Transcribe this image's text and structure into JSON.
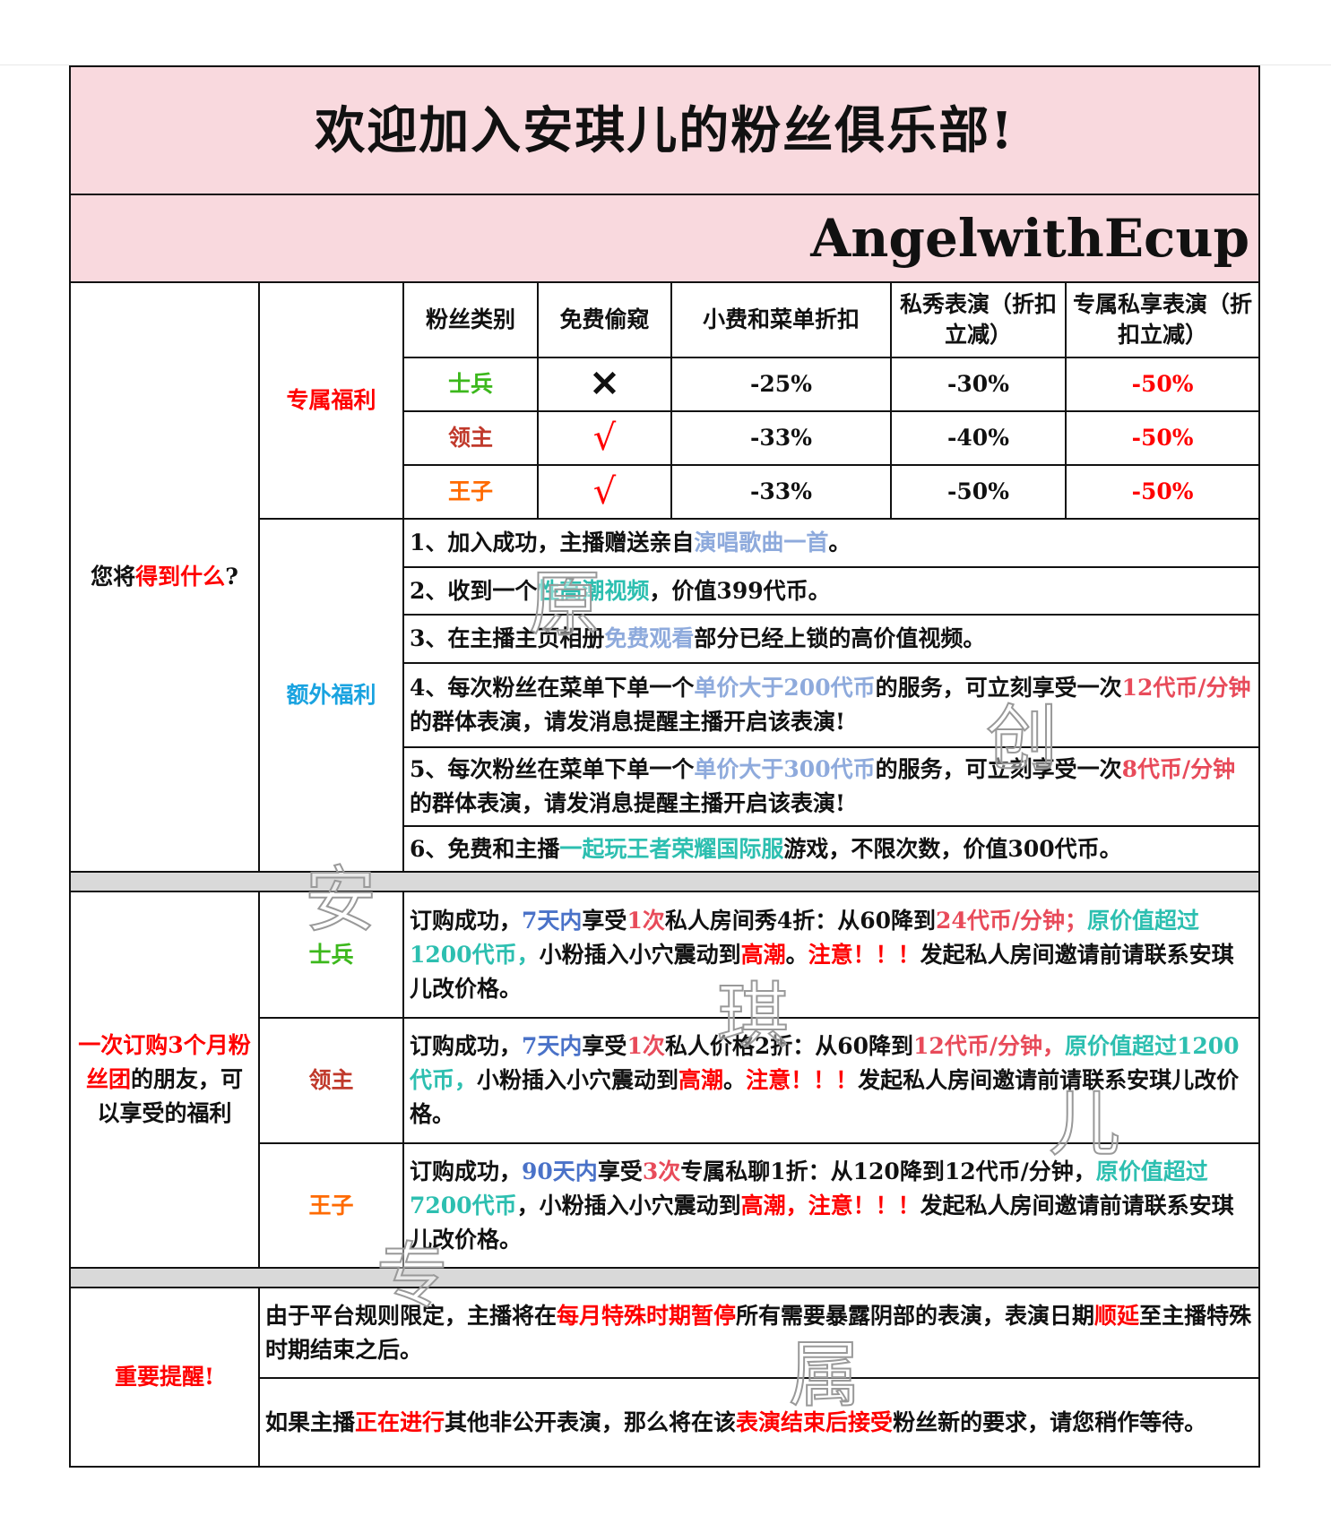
{
  "title": "欢迎加入安琪儿的粉丝俱乐部!",
  "brand": "AngelwithEcup",
  "colors": {
    "pink_bg": "#f9d9de",
    "soldier": "#3cb81c",
    "lord": "#c0392b",
    "prince": "#ff6a00",
    "red": "#ff0000",
    "lavender": "#8eaadc",
    "teal": "#2dbfb0",
    "pinkred": "#e84b5a",
    "blue": "#4a72c8",
    "cyan": "#1aa3e0"
  },
  "left_label": [
    {
      "t": "您将",
      "c": "k"
    },
    {
      "t": "得到什么",
      "c": "red"
    },
    {
      "t": "?",
      "c": "k"
    }
  ],
  "exclusive": {
    "label": "专属福利",
    "headers": [
      "粉丝类别",
      "免费偷窥",
      "小费和菜单折扣",
      "私秀表演（折扣立减）",
      "专属私享表演（折扣立减）"
    ],
    "rows": [
      {
        "tier": "士兵",
        "peek": "✕",
        "tip": "-25%",
        "private": "-30%",
        "exclusive": "-50%"
      },
      {
        "tier": "领主",
        "peek": "√",
        "tip": "-33%",
        "private": "-40%",
        "exclusive": "-50%"
      },
      {
        "tier": "王子",
        "peek": "√",
        "tip": "-33%",
        "private": "-50%",
        "exclusive": "-50%"
      }
    ]
  },
  "extra": {
    "label": "额外福利",
    "items": [
      [
        {
          "t": "1、加入成功，主播赠送亲自",
          "c": "k"
        },
        {
          "t": "演唱歌曲一首",
          "c": "lav"
        },
        {
          "t": "。",
          "c": "k"
        }
      ],
      [
        {
          "t": "2、收到一个",
          "c": "k"
        },
        {
          "t": "性高潮视频",
          "c": "teal"
        },
        {
          "t": "，价值399代币。",
          "c": "k"
        }
      ],
      [
        {
          "t": "3、在主播主页相册",
          "c": "k"
        },
        {
          "t": "免费观看",
          "c": "lav"
        },
        {
          "t": "部分已经上锁的高价值视频。",
          "c": "k"
        }
      ],
      [
        {
          "t": "4、每次粉丝在菜单下单一个",
          "c": "k"
        },
        {
          "t": "单价大于200代币",
          "c": "lav"
        },
        {
          "t": "的服务，可立刻享受一次",
          "c": "k"
        },
        {
          "t": "12代币/分钟",
          "c": "pink"
        },
        {
          "t": "的群体表演，请发消息提醒主播开启该表演!",
          "c": "k"
        }
      ],
      [
        {
          "t": "5、每次粉丝在菜单下单一个",
          "c": "k"
        },
        {
          "t": "单价大于300代币",
          "c": "lav"
        },
        {
          "t": "的服务，可立刻享受一次",
          "c": "k"
        },
        {
          "t": "8代币/分钟",
          "c": "pink"
        },
        {
          "t": "的群体表演，请发消息提醒主播开启该表演!",
          "c": "k"
        }
      ],
      [
        {
          "t": "6、免费和主播",
          "c": "k"
        },
        {
          "t": "一起玩王者荣耀国际服",
          "c": "teal"
        },
        {
          "t": "游戏，不限次数，价值300代币。",
          "c": "k"
        }
      ]
    ]
  },
  "subscribe": {
    "label": [
      {
        "t": "一次订购3个月粉丝团",
        "c": "red"
      },
      {
        "t": "的朋友，可以享受的福利",
        "c": "k"
      }
    ],
    "rows": [
      {
        "tier": "士兵",
        "text": [
          {
            "t": "订购成功，",
            "c": "k"
          },
          {
            "t": "7天内",
            "c": "blue"
          },
          {
            "t": "享受",
            "c": "k"
          },
          {
            "t": "1次",
            "c": "pink"
          },
          {
            "t": "私人房间秀4折：从60降到",
            "c": "k"
          },
          {
            "t": "24代币/分钟；",
            "c": "pink"
          },
          {
            "t": "原价值超过1200代币，",
            "c": "teal"
          },
          {
            "t": "小粉插入小穴震动到",
            "c": "k"
          },
          {
            "t": "高潮",
            "c": "red"
          },
          {
            "t": "。",
            "c": "k"
          },
          {
            "t": "注意！！！",
            "c": "red"
          },
          {
            "t": "发起私人房间邀请前请联系安琪儿改价格。",
            "c": "k"
          }
        ]
      },
      {
        "tier": "领主",
        "text": [
          {
            "t": "订购成功，",
            "c": "k"
          },
          {
            "t": "7天内",
            "c": "blue"
          },
          {
            "t": "享受",
            "c": "k"
          },
          {
            "t": "1次",
            "c": "pink"
          },
          {
            "t": "私人价格2折：从60降到",
            "c": "k"
          },
          {
            "t": "12代币/分钟，",
            "c": "pink"
          },
          {
            "t": "原价值超过1200代币，",
            "c": "teal"
          },
          {
            "t": "小粉插入小穴震动到",
            "c": "k"
          },
          {
            "t": "高潮",
            "c": "red"
          },
          {
            "t": "。",
            "c": "k"
          },
          {
            "t": "注意！！！",
            "c": "red"
          },
          {
            "t": "发起私人房间邀请前请联系安琪儿改价格。",
            "c": "k"
          }
        ]
      },
      {
        "tier": "王子",
        "text": [
          {
            "t": "订购成功，",
            "c": "k"
          },
          {
            "t": "90天内",
            "c": "blue"
          },
          {
            "t": "享受",
            "c": "k"
          },
          {
            "t": "3次",
            "c": "pink"
          },
          {
            "t": "专属私聊1折：从120降到12代币/分钟，",
            "c": "k"
          },
          {
            "t": "原价值超过7200代币",
            "c": "teal"
          },
          {
            "t": "，小粉插入小穴震动到",
            "c": "k"
          },
          {
            "t": "高潮，注意！！！",
            "c": "red"
          },
          {
            "t": "发起私人房间邀请前请联系安琪儿改价格。",
            "c": "k"
          }
        ]
      }
    ]
  },
  "reminder": {
    "label": "重要提醒!",
    "items": [
      [
        {
          "t": "由于平台规则限定，主播将在",
          "c": "k"
        },
        {
          "t": "每月特殊时期暂停",
          "c": "red"
        },
        {
          "t": "所有需要暴露阴部的表演，表演日期",
          "c": "k"
        },
        {
          "t": "顺延",
          "c": "red"
        },
        {
          "t": "至主播特殊时期结束之后。",
          "c": "k"
        }
      ],
      [
        {
          "t": "如果主播",
          "c": "k"
        },
        {
          "t": "正在进行",
          "c": "red"
        },
        {
          "t": "其他非公开表演，那么将在该",
          "c": "k"
        },
        {
          "t": "表演结束后接受",
          "c": "red"
        },
        {
          "t": "粉丝新的要求，请您稍作等待。",
          "c": "k"
        }
      ]
    ]
  },
  "watermark": [
    "原",
    "创",
    "安",
    "琪",
    "儿",
    "专",
    "属"
  ]
}
